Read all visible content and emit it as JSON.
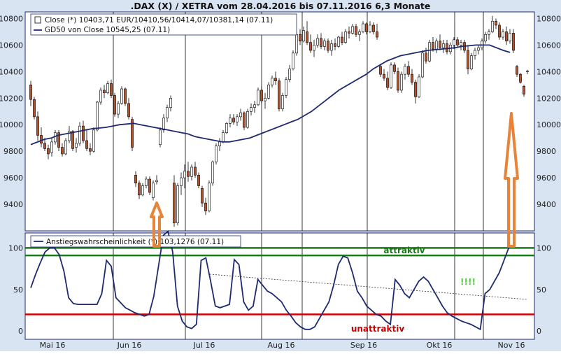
{
  "chart_data": [
    {
      "type": "candlestick",
      "title": ".DAX (X) / XETRA vom 28.04.2016 bis 07.11.2016 6,3 Monate",
      "legend": [
        {
          "name": "Close (*) 10403,71 EUR/10410,56/10414,07/10381,14 (07.11)",
          "symbol": "candle"
        },
        {
          "name": "GD50 von Close 10545,25 (07.11)",
          "symbol": "line"
        }
      ],
      "y_ticks": [
        9400,
        9600,
        9800,
        10000,
        10200,
        10400,
        10600,
        10800
      ],
      "y_tick_labels": [
        "9400",
        "9600",
        "9800",
        "10000",
        "10200",
        "10400",
        "10600",
        "10800"
      ],
      "ylim": [
        9200,
        10850
      ],
      "grid": "vertical month lines",
      "candles": [
        {
          "o": 10300,
          "h": 10330,
          "l": 10140,
          "c": 10190
        },
        {
          "o": 10190,
          "h": 10210,
          "l": 10040,
          "c": 10060
        },
        {
          "o": 10060,
          "h": 10100,
          "l": 9880,
          "c": 9920
        },
        {
          "o": 9920,
          "h": 9980,
          "l": 9830,
          "c": 9860
        },
        {
          "o": 9860,
          "h": 9900,
          "l": 9800,
          "c": 9820
        },
        {
          "o": 9820,
          "h": 9850,
          "l": 9740,
          "c": 9780
        },
        {
          "o": 9790,
          "h": 9900,
          "l": 9760,
          "c": 9870
        },
        {
          "o": 9870,
          "h": 9960,
          "l": 9850,
          "c": 9940
        },
        {
          "o": 9940,
          "h": 9960,
          "l": 9800,
          "c": 9830
        },
        {
          "o": 9830,
          "h": 9860,
          "l": 9760,
          "c": 9780
        },
        {
          "o": 9780,
          "h": 9900,
          "l": 9770,
          "c": 9880
        },
        {
          "o": 9880,
          "h": 9990,
          "l": 9860,
          "c": 9950
        },
        {
          "o": 9950,
          "h": 9960,
          "l": 9800,
          "c": 9820
        },
        {
          "o": 9830,
          "h": 9900,
          "l": 9790,
          "c": 9860
        },
        {
          "o": 9860,
          "h": 10020,
          "l": 9840,
          "c": 9990
        },
        {
          "o": 9990,
          "h": 10030,
          "l": 9860,
          "c": 9880
        },
        {
          "o": 9880,
          "h": 9960,
          "l": 9800,
          "c": 9820
        },
        {
          "o": 9820,
          "h": 9860,
          "l": 9770,
          "c": 9800
        },
        {
          "o": 9800,
          "h": 9980,
          "l": 9790,
          "c": 9960
        },
        {
          "o": 9960,
          "h": 10180,
          "l": 9950,
          "c": 10170
        },
        {
          "o": 10170,
          "h": 10280,
          "l": 10150,
          "c": 10260
        },
        {
          "o": 10260,
          "h": 10300,
          "l": 10200,
          "c": 10240
        },
        {
          "o": 10240,
          "h": 10330,
          "l": 10230,
          "c": 10310
        },
        {
          "o": 10310,
          "h": 10340,
          "l": 10200,
          "c": 10220
        },
        {
          "o": 10220,
          "h": 10240,
          "l": 10060,
          "c": 10080
        },
        {
          "o": 10080,
          "h": 10180,
          "l": 10050,
          "c": 10160
        },
        {
          "o": 10160,
          "h": 10290,
          "l": 10150,
          "c": 10270
        },
        {
          "o": 10270,
          "h": 10280,
          "l": 10140,
          "c": 10160
        },
        {
          "o": 10160,
          "h": 10200,
          "l": 10040,
          "c": 10060
        },
        {
          "o": 10040,
          "h": 10060,
          "l": 9800,
          "c": 9830
        },
        {
          "o": 9620,
          "h": 9650,
          "l": 9530,
          "c": 9560
        },
        {
          "o": 9560,
          "h": 9580,
          "l": 9440,
          "c": 9470
        },
        {
          "o": 9470,
          "h": 9560,
          "l": 9460,
          "c": 9540
        },
        {
          "o": 9540,
          "h": 9610,
          "l": 9520,
          "c": 9590
        },
        {
          "o": 9590,
          "h": 9610,
          "l": 9470,
          "c": 9490
        },
        {
          "o": 9450,
          "h": 9580,
          "l": 9430,
          "c": 9560
        },
        {
          "o": 9570,
          "h": 9620,
          "l": 9550,
          "c": 9580
        },
        {
          "o": 9850,
          "h": 9980,
          "l": 9830,
          "c": 9960
        },
        {
          "o": 9960,
          "h": 10080,
          "l": 9940,
          "c": 10050
        },
        {
          "o": 10050,
          "h": 10150,
          "l": 10020,
          "c": 10130
        },
        {
          "o": 10130,
          "h": 10220,
          "l": 10100,
          "c": 10200
        },
        {
          "o": 9560,
          "h": 9620,
          "l": 9230,
          "c": 9260
        },
        {
          "o": 9260,
          "h": 9560,
          "l": 9240,
          "c": 9540
        },
        {
          "o": 9540,
          "h": 9640,
          "l": 9470,
          "c": 9600
        },
        {
          "o": 9600,
          "h": 9700,
          "l": 9520,
          "c": 9650
        },
        {
          "o": 9650,
          "h": 9720,
          "l": 9570,
          "c": 9610
        },
        {
          "o": 9610,
          "h": 9700,
          "l": 9580,
          "c": 9680
        },
        {
          "o": 9680,
          "h": 9720,
          "l": 9600,
          "c": 9620
        },
        {
          "o": 9620,
          "h": 9640,
          "l": 9520,
          "c": 9540
        },
        {
          "o": 9520,
          "h": 9540,
          "l": 9380,
          "c": 9410
        },
        {
          "o": 9410,
          "h": 9450,
          "l": 9320,
          "c": 9350
        },
        {
          "o": 9350,
          "h": 9580,
          "l": 9340,
          "c": 9560
        },
        {
          "o": 9560,
          "h": 9730,
          "l": 9540,
          "c": 9720
        },
        {
          "o": 9720,
          "h": 9860,
          "l": 9700,
          "c": 9840
        },
        {
          "o": 9840,
          "h": 9900,
          "l": 9800,
          "c": 9870
        },
        {
          "o": 9870,
          "h": 9960,
          "l": 9860,
          "c": 9940
        },
        {
          "o": 9940,
          "h": 10020,
          "l": 9930,
          "c": 10010
        },
        {
          "o": 10010,
          "h": 10080,
          "l": 9980,
          "c": 10050
        },
        {
          "o": 10050,
          "h": 10080,
          "l": 10000,
          "c": 10020
        },
        {
          "o": 10020,
          "h": 10080,
          "l": 9990,
          "c": 10060
        },
        {
          "o": 10060,
          "h": 10120,
          "l": 10030,
          "c": 10090
        },
        {
          "o": 10090,
          "h": 10100,
          "l": 9960,
          "c": 9980
        },
        {
          "o": 9980,
          "h": 10120,
          "l": 9970,
          "c": 10100
        },
        {
          "o": 10100,
          "h": 10160,
          "l": 10070,
          "c": 10130
        },
        {
          "o": 10130,
          "h": 10180,
          "l": 10090,
          "c": 10150
        },
        {
          "o": 10150,
          "h": 10280,
          "l": 10140,
          "c": 10260
        },
        {
          "o": 10260,
          "h": 10290,
          "l": 10160,
          "c": 10180
        },
        {
          "o": 10180,
          "h": 10240,
          "l": 10120,
          "c": 10200
        },
        {
          "o": 10200,
          "h": 10320,
          "l": 10190,
          "c": 10300
        },
        {
          "o": 10300,
          "h": 10370,
          "l": 10280,
          "c": 10350
        },
        {
          "o": 10350,
          "h": 10400,
          "l": 10300,
          "c": 10330
        },
        {
          "o": 10330,
          "h": 10350,
          "l": 10100,
          "c": 10120
        },
        {
          "o": 10120,
          "h": 10240,
          "l": 10100,
          "c": 10220
        },
        {
          "o": 10220,
          "h": 10360,
          "l": 10200,
          "c": 10340
        },
        {
          "o": 10340,
          "h": 10450,
          "l": 10320,
          "c": 10420
        },
        {
          "o": 10420,
          "h": 10560,
          "l": 10410,
          "c": 10540
        },
        {
          "o": 10540,
          "h": 10700,
          "l": 10520,
          "c": 10680
        },
        {
          "o": 10680,
          "h": 10720,
          "l": 10600,
          "c": 10630
        },
        {
          "o": 10630,
          "h": 10740,
          "l": 10620,
          "c": 10710
        },
        {
          "o": 10700,
          "h": 10780,
          "l": 10600,
          "c": 10620
        },
        {
          "o": 10620,
          "h": 10680,
          "l": 10540,
          "c": 10560
        },
        {
          "o": 10560,
          "h": 10640,
          "l": 10510,
          "c": 10600
        },
        {
          "o": 10600,
          "h": 10680,
          "l": 10580,
          "c": 10650
        },
        {
          "o": 10650,
          "h": 10690,
          "l": 10570,
          "c": 10590
        },
        {
          "o": 10590,
          "h": 10650,
          "l": 10560,
          "c": 10630
        },
        {
          "o": 10630,
          "h": 10650,
          "l": 10540,
          "c": 10560
        },
        {
          "o": 10560,
          "h": 10640,
          "l": 10520,
          "c": 10610
        },
        {
          "o": 10610,
          "h": 10650,
          "l": 10560,
          "c": 10590
        },
        {
          "o": 10590,
          "h": 10670,
          "l": 10580,
          "c": 10660
        },
        {
          "o": 10660,
          "h": 10700,
          "l": 10600,
          "c": 10620
        },
        {
          "o": 10620,
          "h": 10720,
          "l": 10610,
          "c": 10700
        },
        {
          "o": 10700,
          "h": 10740,
          "l": 10650,
          "c": 10690
        },
        {
          "o": 10690,
          "h": 10760,
          "l": 10680,
          "c": 10740
        },
        {
          "o": 10740,
          "h": 10760,
          "l": 10660,
          "c": 10680
        },
        {
          "o": 10680,
          "h": 10720,
          "l": 10630,
          "c": 10700
        },
        {
          "o": 10700,
          "h": 10780,
          "l": 10690,
          "c": 10760
        },
        {
          "o": 10760,
          "h": 10770,
          "l": 10680,
          "c": 10700
        },
        {
          "o": 10700,
          "h": 10780,
          "l": 10690,
          "c": 10750
        },
        {
          "o": 10750,
          "h": 10770,
          "l": 10680,
          "c": 10700
        },
        {
          "o": 10700,
          "h": 10760,
          "l": 10640,
          "c": 10660
        },
        {
          "o": 10440,
          "h": 10460,
          "l": 10360,
          "c": 10380
        },
        {
          "o": 10380,
          "h": 10420,
          "l": 10330,
          "c": 10350
        },
        {
          "o": 10350,
          "h": 10400,
          "l": 10260,
          "c": 10280
        },
        {
          "o": 10280,
          "h": 10470,
          "l": 10270,
          "c": 10450
        },
        {
          "o": 10450,
          "h": 10470,
          "l": 10380,
          "c": 10400
        },
        {
          "o": 10400,
          "h": 10430,
          "l": 10240,
          "c": 10260
        },
        {
          "o": 10260,
          "h": 10400,
          "l": 10240,
          "c": 10380
        },
        {
          "o": 10380,
          "h": 10460,
          "l": 10340,
          "c": 10440
        },
        {
          "o": 10440,
          "h": 10480,
          "l": 10360,
          "c": 10380
        },
        {
          "o": 10380,
          "h": 10420,
          "l": 10300,
          "c": 10320
        },
        {
          "o": 10320,
          "h": 10340,
          "l": 10160,
          "c": 10210
        },
        {
          "o": 10210,
          "h": 10380,
          "l": 10200,
          "c": 10360
        },
        {
          "o": 10360,
          "h": 10560,
          "l": 10350,
          "c": 10540
        },
        {
          "o": 10540,
          "h": 10580,
          "l": 10460,
          "c": 10480
        },
        {
          "o": 10480,
          "h": 10640,
          "l": 10470,
          "c": 10620
        },
        {
          "o": 10620,
          "h": 10660,
          "l": 10550,
          "c": 10570
        },
        {
          "o": 10570,
          "h": 10650,
          "l": 10540,
          "c": 10630
        },
        {
          "o": 10630,
          "h": 10680,
          "l": 10560,
          "c": 10580
        },
        {
          "o": 10580,
          "h": 10640,
          "l": 10540,
          "c": 10610
        },
        {
          "o": 10610,
          "h": 10640,
          "l": 10530,
          "c": 10550
        },
        {
          "o": 10550,
          "h": 10620,
          "l": 10530,
          "c": 10600
        },
        {
          "o": 10600,
          "h": 10660,
          "l": 10570,
          "c": 10640
        },
        {
          "o": 10640,
          "h": 10660,
          "l": 10580,
          "c": 10600
        },
        {
          "o": 10600,
          "h": 10640,
          "l": 10560,
          "c": 10620
        },
        {
          "o": 10620,
          "h": 10640,
          "l": 10540,
          "c": 10560
        },
        {
          "o": 10560,
          "h": 10600,
          "l": 10380,
          "c": 10420
        },
        {
          "o": 10420,
          "h": 10540,
          "l": 10410,
          "c": 10520
        },
        {
          "o": 10520,
          "h": 10580,
          "l": 10490,
          "c": 10560
        },
        {
          "o": 10560,
          "h": 10600,
          "l": 10530,
          "c": 10580
        },
        {
          "o": 10580,
          "h": 10650,
          "l": 10560,
          "c": 10630
        },
        {
          "o": 10630,
          "h": 10700,
          "l": 10610,
          "c": 10680
        },
        {
          "o": 10680,
          "h": 10720,
          "l": 10640,
          "c": 10700
        },
        {
          "o": 10700,
          "h": 10820,
          "l": 10690,
          "c": 10780
        },
        {
          "o": 10780,
          "h": 10800,
          "l": 10720,
          "c": 10750
        },
        {
          "o": 10750,
          "h": 10770,
          "l": 10640,
          "c": 10660
        },
        {
          "o": 10660,
          "h": 10720,
          "l": 10640,
          "c": 10700
        },
        {
          "o": 10700,
          "h": 10740,
          "l": 10600,
          "c": 10630
        },
        {
          "o": 10630,
          "h": 10720,
          "l": 10610,
          "c": 10690
        },
        {
          "o": 10690,
          "h": 10720,
          "l": 10540,
          "c": 10560
        },
        {
          "o": 10440,
          "h": 10450,
          "l": 10360,
          "c": 10380
        },
        {
          "o": 10380,
          "h": 10390,
          "l": 10310,
          "c": 10320
        },
        {
          "o": 10290,
          "h": 10300,
          "l": 10210,
          "c": 10230
        },
        {
          "o": 10400,
          "h": 10414,
          "l": 10381,
          "c": 10404
        }
      ],
      "gd50": [
        9850,
        9870,
        9890,
        9900,
        9920,
        9930,
        9940,
        9950,
        9960,
        9970,
        9975,
        9980,
        9990,
        10000,
        10005,
        10010,
        10000,
        9990,
        9980,
        9970,
        9960,
        9950,
        9940,
        9930,
        9910,
        9900,
        9890,
        9880,
        9870,
        9870,
        9880,
        9890,
        9900,
        9920,
        9940,
        9960,
        9980,
        10000,
        10020,
        10040,
        10070,
        10100,
        10140,
        10180,
        10220,
        10260,
        10290,
        10320,
        10350,
        10380,
        10420,
        10450,
        10480,
        10500,
        10520,
        10530,
        10540,
        10550,
        10560,
        10565,
        10570,
        10575,
        10580,
        10590,
        10595,
        10600,
        10600,
        10600,
        10580,
        10560,
        10545
      ],
      "month_labels": [
        "Mai 16",
        "Jun 16",
        "Jul 16",
        "Aug 16",
        "Sep 16",
        "Okt 16",
        "Nov 16"
      ]
    },
    {
      "type": "line",
      "legend": [
        {
          "name": "Anstiegswahrscheinlichkeit (*) 103,1276 (07.11)"
        }
      ],
      "y_ticks": [
        0,
        50,
        100
      ],
      "y_tick_labels": [
        "0",
        "50",
        "100"
      ],
      "ylim": [
        -10,
        118
      ],
      "thresholds": [
        {
          "value": 100,
          "label": "attraktiv",
          "color": "#1a7a1a"
        },
        {
          "value": 91,
          "label": "",
          "color": "#1a7a1a"
        },
        {
          "value": 20,
          "label": "unattraktiv",
          "color": "#cc0000"
        }
      ],
      "annotation": "!!!!",
      "values": [
        52,
        68,
        82,
        95,
        100,
        100,
        92,
        72,
        40,
        33,
        32,
        32,
        32,
        32,
        32,
        45,
        85,
        78,
        40,
        34,
        28,
        25,
        22,
        20,
        18,
        20,
        42,
        78,
        115,
        120,
        95,
        30,
        12,
        5,
        3,
        8,
        85,
        88,
        60,
        30,
        28,
        30,
        32,
        86,
        80,
        35,
        25,
        30,
        62,
        55,
        48,
        45,
        40,
        35,
        25,
        18,
        10,
        5,
        2,
        2,
        5,
        15,
        25,
        35,
        55,
        80,
        90,
        88,
        70,
        48,
        40,
        30,
        25,
        20,
        18,
        12,
        8,
        62,
        55,
        45,
        40,
        50,
        60,
        65,
        60,
        50,
        40,
        30,
        22,
        18,
        15,
        12,
        10,
        8,
        5,
        2,
        45,
        50,
        60,
        70,
        85,
        100,
        103
      ]
    }
  ],
  "colors": {
    "border": "#1e2a6e",
    "frame_fill": "#d9e4f2",
    "candle_up": "#ffffff",
    "candle_down": "#b5512d",
    "gd50": "#1e2a6e",
    "arrow": "#e8833a"
  }
}
